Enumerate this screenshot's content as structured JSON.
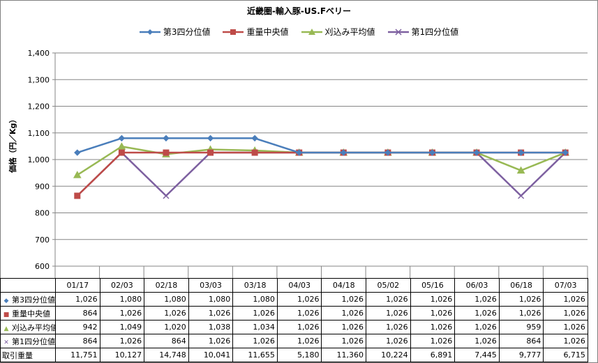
{
  "chart_data": {
    "type": "line",
    "title": "近畿圏-輸入豚-US.Fベリー",
    "ylabel": "価格（円／Kg）",
    "ylim": [
      600,
      1400
    ],
    "yticks": [
      "600",
      "700",
      "800",
      "900",
      "1,000",
      "1,100",
      "1,200",
      "1,300",
      "1,400"
    ],
    "grid": true,
    "legend_position": "top",
    "categories": [
      "01/17",
      "02/03",
      "02/18",
      "03/03",
      "03/18",
      "04/03",
      "04/18",
      "05/02",
      "05/16",
      "06/03",
      "06/18",
      "07/03"
    ],
    "series": [
      {
        "name": "第3四分位値",
        "color": "#4a7ebb",
        "marker": "diamond",
        "values": [
          1026,
          1080,
          1080,
          1080,
          1080,
          1026,
          1026,
          1026,
          1026,
          1026,
          1026,
          1026
        ],
        "labels": [
          "1,026",
          "1,080",
          "1,080",
          "1,080",
          "1,080",
          "1,026",
          "1,026",
          "1,026",
          "1,026",
          "1,026",
          "1,026",
          "1,026"
        ]
      },
      {
        "name": "重量中央値",
        "color": "#be4b48",
        "marker": "square",
        "values": [
          864,
          1026,
          1026,
          1026,
          1026,
          1026,
          1026,
          1026,
          1026,
          1026,
          1026,
          1026
        ],
        "labels": [
          "864",
          "1,026",
          "1,026",
          "1,026",
          "1,026",
          "1,026",
          "1,026",
          "1,026",
          "1,026",
          "1,026",
          "1,026",
          "1,026"
        ]
      },
      {
        "name": "刈込み平均値",
        "color": "#98b954",
        "marker": "triangle",
        "values": [
          942,
          1049,
          1020,
          1038,
          1034,
          1026,
          1026,
          1026,
          1026,
          1026,
          959,
          1026
        ],
        "labels": [
          "942",
          "1,049",
          "1,020",
          "1,038",
          "1,034",
          "1,026",
          "1,026",
          "1,026",
          "1,026",
          "1,026",
          "959",
          "1,026"
        ]
      },
      {
        "name": "第1四分位値",
        "color": "#7d60a0",
        "marker": "x",
        "values": [
          864,
          1026,
          864,
          1026,
          1026,
          1026,
          1026,
          1026,
          1026,
          1026,
          864,
          1026
        ],
        "labels": [
          "864",
          "1,026",
          "864",
          "1,026",
          "1,026",
          "1,026",
          "1,026",
          "1,026",
          "1,026",
          "1,026",
          "864",
          "1,026"
        ]
      }
    ],
    "volume": {
      "name": "取引重量",
      "values": [
        11751,
        10127,
        14748,
        10041,
        11655,
        5180,
        11360,
        10224,
        6891,
        7445,
        9777,
        6715
      ],
      "labels": [
        "11,751",
        "10,127",
        "14,748",
        "10,041",
        "11,655",
        "5,180",
        "11,360",
        "10,224",
        "6,891",
        "7,445",
        "9,777",
        "6,715"
      ]
    }
  }
}
